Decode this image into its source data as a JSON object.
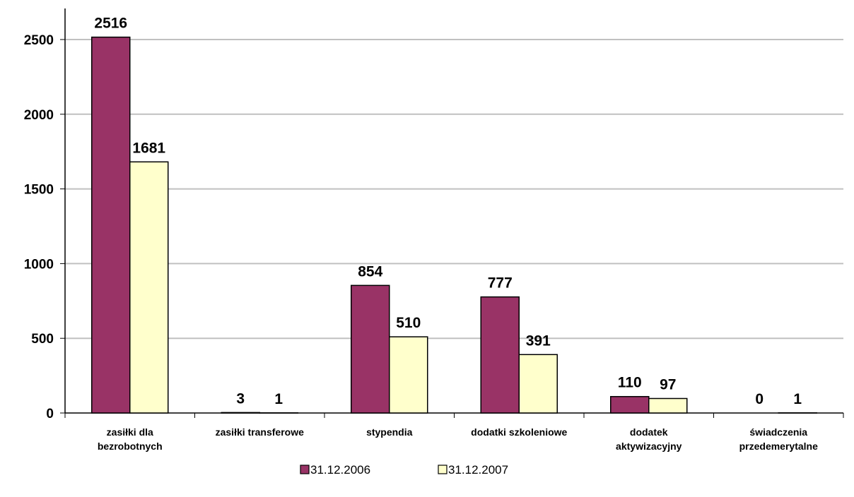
{
  "chart_data": {
    "type": "bar",
    "title": "",
    "xlabel": "",
    "ylabel": "",
    "ylim": [
      0,
      2500
    ],
    "yticks": [
      0,
      500,
      1000,
      1500,
      2000,
      2500
    ],
    "grid": true,
    "legend_position": "bottom",
    "categories": [
      [
        "zasiłki dla",
        "bezrobotnych"
      ],
      [
        "zasiłki transferowe"
      ],
      [
        "stypendia"
      ],
      [
        "dodatki szkoleniowe"
      ],
      [
        "dodatek",
        "aktywizacyjny"
      ],
      [
        "świadczenia",
        "przedemerytalne"
      ]
    ],
    "series": [
      {
        "name": "31.12.2006",
        "color": "#993366",
        "values": [
          2516,
          3,
          854,
          777,
          110,
          0
        ]
      },
      {
        "name": "31.12.2007",
        "color": "#FFFFCC",
        "values": [
          1681,
          1,
          510,
          391,
          97,
          1
        ]
      }
    ]
  }
}
